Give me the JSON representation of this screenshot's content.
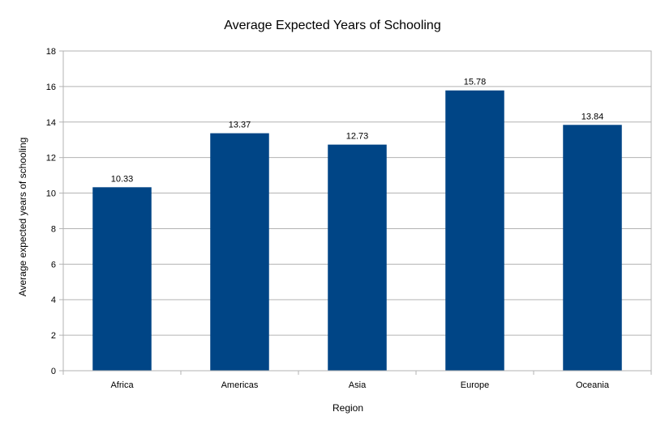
{
  "chart_data": {
    "type": "bar",
    "title": "Average Expected Years of Schooling",
    "xlabel": "Region",
    "ylabel": "Average expected years of schooling",
    "categories": [
      "Africa",
      "Americas",
      "Asia",
      "Europe",
      "Oceania"
    ],
    "values": [
      10.33,
      13.37,
      12.73,
      15.78,
      13.84
    ],
    "value_labels": [
      "10.33",
      "13.37",
      "12.73",
      "15.78",
      "13.84"
    ],
    "yticks": [
      "0",
      "2",
      "4",
      "6",
      "8",
      "10",
      "12",
      "14",
      "16",
      "18"
    ],
    "ylim": [
      0,
      18
    ],
    "grid": true,
    "legend": "none",
    "colors": {
      "bar": "#004586",
      "grid": "#b3b3b3",
      "axis": "#b3b3b3"
    }
  }
}
